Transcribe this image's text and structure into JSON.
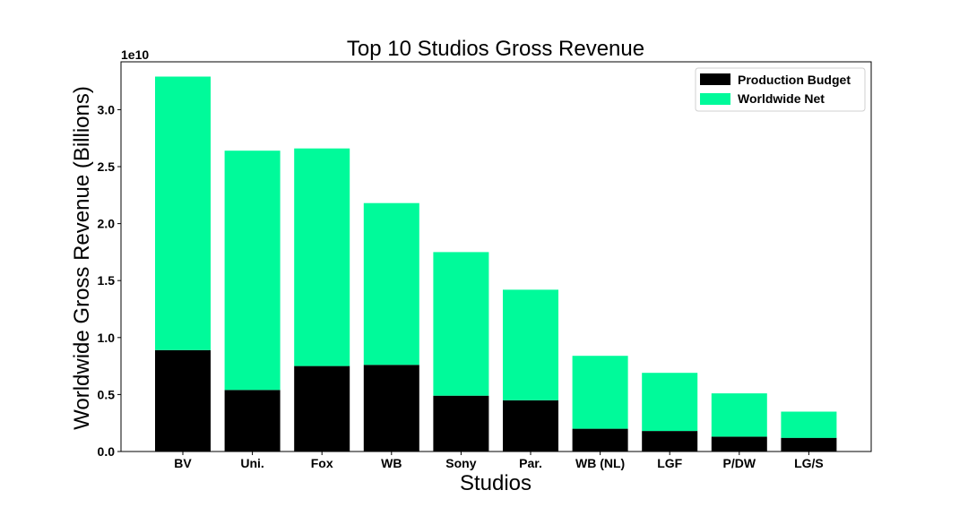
{
  "chart_data": {
    "type": "bar",
    "stacked": true,
    "title": "Top 10 Studios Gross Revenue",
    "xlabel": "Studios",
    "ylabel": "Worldwide Gross Revenue (Billions)",
    "y_offset_label": "1e10",
    "categories": [
      "BV",
      "Uni.",
      "Fox",
      "WB",
      "Sony",
      "Par.",
      "WB (NL)",
      "LGF",
      "P/DW",
      "LG/S"
    ],
    "series": [
      {
        "name": "Production Budget",
        "color": "#000000",
        "values": [
          0.89,
          0.54,
          0.75,
          0.76,
          0.49,
          0.45,
          0.2,
          0.18,
          0.13,
          0.12
        ]
      },
      {
        "name": "Worldwide Net",
        "color": "#00fa9a",
        "values": [
          2.4,
          2.1,
          1.91,
          1.42,
          1.26,
          0.97,
          0.64,
          0.51,
          0.38,
          0.23
        ]
      }
    ],
    "ylim": [
      0,
      3.42
    ],
    "yticks": [
      "0.0",
      "0.5",
      "1.0",
      "1.5",
      "2.0",
      "2.5",
      "3.0"
    ],
    "ytick_values": [
      0,
      0.5,
      1.0,
      1.5,
      2.0,
      2.5,
      3.0
    ],
    "grid": false,
    "legend_position": "top-right"
  }
}
